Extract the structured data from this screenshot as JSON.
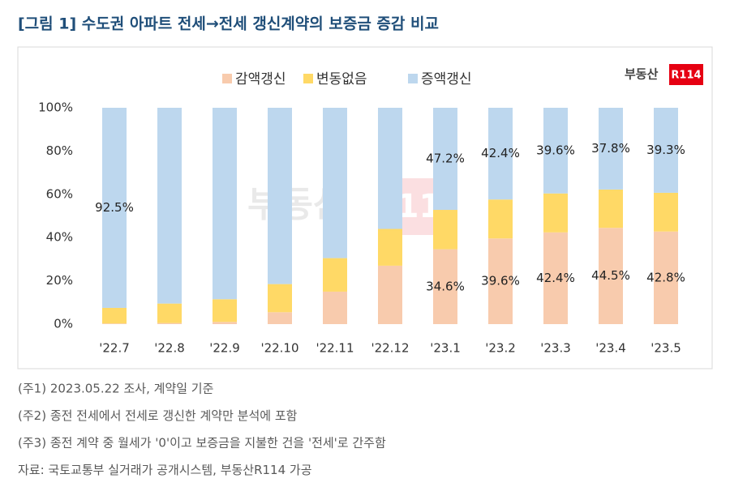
{
  "title": "[그림 1] 수도권 아파트 전세→전세 갱신계약의 보증금 증감 비교",
  "chart_data": {
    "type": "stacked_bar",
    "logo": {
      "text": "부동산",
      "badge": "R114"
    },
    "categories": [
      "'22.7",
      "'22.8",
      "'22.9",
      "'22.10",
      "'22.11",
      "'22.12",
      "'23.1",
      "'23.2",
      "'23.3",
      "'23.4",
      "'23.5"
    ],
    "series": [
      {
        "name": "감액갱신",
        "color": "#f8cbad",
        "values": [
          0.3,
          0.5,
          1.0,
          5.5,
          15,
          27,
          34.6,
          39.6,
          42.4,
          44.5,
          42.8
        ],
        "value_labels": [
          null,
          null,
          null,
          null,
          null,
          null,
          "34.6%",
          "39.6%",
          "42.4%",
          "44.5%",
          "42.8%"
        ]
      },
      {
        "name": "변동없음",
        "color": "#ffd966",
        "values": [
          7.2,
          9,
          10.5,
          13,
          15.5,
          17,
          18.2,
          18.0,
          18.0,
          17.7,
          17.9
        ]
      },
      {
        "name": "증액갱신",
        "color": "#bdd7ee",
        "values": [
          92.5,
          90.5,
          88.5,
          81.5,
          69.5,
          56,
          47.2,
          42.4,
          39.6,
          37.8,
          39.3
        ],
        "value_labels": [
          "92.5%",
          null,
          null,
          null,
          null,
          null,
          "47.2%",
          "42.4%",
          "39.6%",
          "37.8%",
          "39.3%"
        ]
      }
    ],
    "ylim": [
      0,
      100
    ],
    "yticks": [
      {
        "value": 0,
        "label": "0%"
      },
      {
        "value": 20,
        "label": "20%"
      },
      {
        "value": 40,
        "label": "40%"
      },
      {
        "value": 60,
        "label": "60%"
      },
      {
        "value": 80,
        "label": "80%"
      },
      {
        "value": 100,
        "label": "100%"
      }
    ],
    "legend": "top",
    "grid": false
  },
  "notes": [
    "(주1) 2023.05.22 조사, 계약일 기준",
    "(주2) 종전 전세에서 전세로 갱신한 계약만 분석에 포함",
    "(주3) 종전 계약 중 월세가 '0'이고 보증금을 지불한 건을 '전세'로 간주함",
    "자료: 국토교통부 실거래가 공개시스템, 부동산R114 가공"
  ]
}
